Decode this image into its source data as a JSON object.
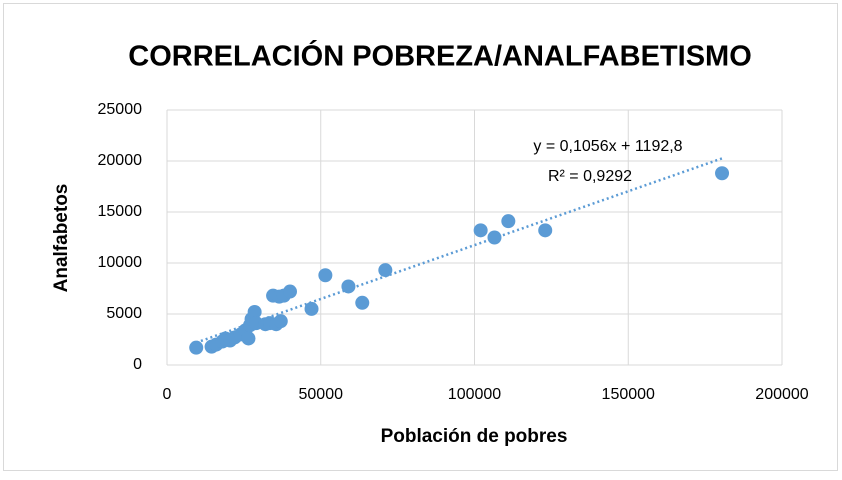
{
  "chart_data": {
    "type": "scatter",
    "title": "CORRELACIÓN POBREZA/ANALFABETISMO",
    "x_label": "Población de pobres",
    "y_label": "Analfabetos",
    "x": [
      9500,
      14500,
      16000,
      18000,
      19000,
      20500,
      22000,
      24000,
      25500,
      26500,
      27000,
      27500,
      28500,
      29000,
      32000,
      33500,
      34500,
      35500,
      36500,
      37000,
      38000,
      40000,
      47000,
      51500,
      59000,
      63500,
      71000,
      102000,
      106500,
      111000,
      123000,
      180500
    ],
    "values": [
      1700,
      1800,
      2000,
      2300,
      2600,
      2400,
      2700,
      3000,
      3400,
      2600,
      3900,
      4500,
      5200,
      4100,
      4000,
      4100,
      6800,
      4000,
      6700,
      4300,
      6800,
      7200,
      5500,
      8800,
      7700,
      6100,
      9300,
      13200,
      12500,
      14100,
      13200,
      18800
    ],
    "color": "#5b9bd5",
    "xlim": [
      0,
      200000
    ],
    "xticks": [
      0,
      50000,
      100000,
      150000,
      200000
    ],
    "ylim": [
      0,
      25000
    ],
    "yticks": [
      0,
      5000,
      10000,
      15000,
      20000,
      25000
    ],
    "grid": true,
    "trendline": {
      "slope": 0.1056,
      "intercept": 1192.8,
      "equation": "y = 0,1056x + 1192,8",
      "r_squared": "R² = 0,9292"
    }
  }
}
